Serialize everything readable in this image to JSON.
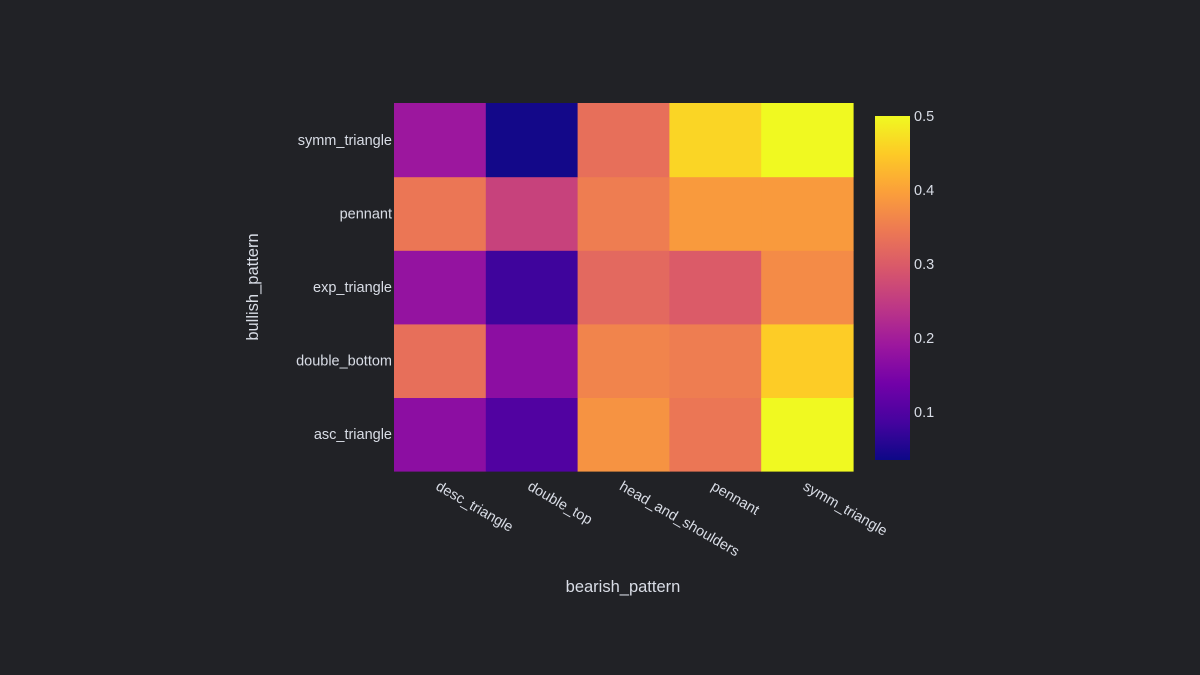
{
  "chart_data": {
    "type": "heatmap",
    "title": "",
    "xlabel": "bearish_pattern",
    "ylabel": "bullish_pattern",
    "x_categories": [
      "desc_triangle",
      "double_top",
      "head_and_shoulders",
      "pennant",
      "symm_triangle"
    ],
    "y_categories": [
      "asc_triangle",
      "double_bottom",
      "exp_triangle",
      "pennant",
      "symm_triangle"
    ],
    "values": [
      [
        0.17,
        0.1,
        0.38,
        0.34,
        0.5
      ],
      [
        0.33,
        0.17,
        0.36,
        0.35,
        0.45
      ],
      [
        0.18,
        0.08,
        0.32,
        0.3,
        0.37
      ],
      [
        0.34,
        0.26,
        0.35,
        0.39,
        0.39
      ],
      [
        0.19,
        0.04,
        0.33,
        0.46,
        0.5
      ]
    ],
    "zlim": [
      0.035,
      0.5
    ],
    "colorbar_ticks": [
      0.1,
      0.2,
      0.3,
      0.4,
      0.5
    ],
    "colorbar_tick_labels": [
      "0.1",
      "0.2",
      "0.3",
      "0.4",
      "0.5"
    ],
    "colorscale": [
      "#0d0887",
      "#46039f",
      "#7201a8",
      "#9c179e",
      "#bd3786",
      "#d8576b",
      "#ed7953",
      "#fb9f3a",
      "#fdca26",
      "#f0f921"
    ],
    "colors": {
      "background": "#212226",
      "text": "#d9dde6"
    }
  }
}
